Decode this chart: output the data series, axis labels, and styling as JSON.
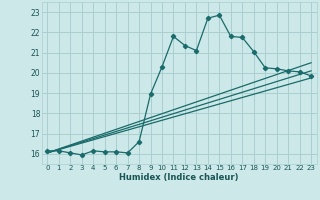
{
  "xlabel": "Humidex (Indice chaleur)",
  "background_color": "#cce8e8",
  "grid_color": "#aacfcf",
  "line_color": "#1a6b6b",
  "xlim": [
    -0.5,
    23.5
  ],
  "ylim": [
    15.5,
    23.5
  ],
  "xticks": [
    0,
    1,
    2,
    3,
    4,
    5,
    6,
    7,
    8,
    9,
    10,
    11,
    12,
    13,
    14,
    15,
    16,
    17,
    18,
    19,
    20,
    21,
    22,
    23
  ],
  "yticks": [
    16,
    17,
    18,
    19,
    20,
    21,
    22,
    23
  ],
  "main_x": [
    0,
    1,
    2,
    3,
    4,
    5,
    6,
    7,
    8,
    9,
    10,
    11,
    12,
    13,
    14,
    15,
    16,
    17,
    18,
    19,
    20,
    21,
    22,
    23
  ],
  "main_y": [
    16.15,
    16.15,
    16.05,
    15.95,
    16.15,
    16.1,
    16.1,
    16.05,
    16.6,
    18.95,
    20.3,
    21.8,
    21.35,
    21.1,
    22.7,
    22.85,
    21.8,
    21.75,
    21.05,
    20.25,
    20.2,
    20.1,
    20.05,
    19.85
  ],
  "line1_x": [
    0,
    23
  ],
  "line1_y": [
    16.05,
    19.75
  ],
  "line2_x": [
    0,
    23
  ],
  "line2_y": [
    16.05,
    20.1
  ],
  "line3_x": [
    0,
    23
  ],
  "line3_y": [
    16.05,
    20.5
  ]
}
